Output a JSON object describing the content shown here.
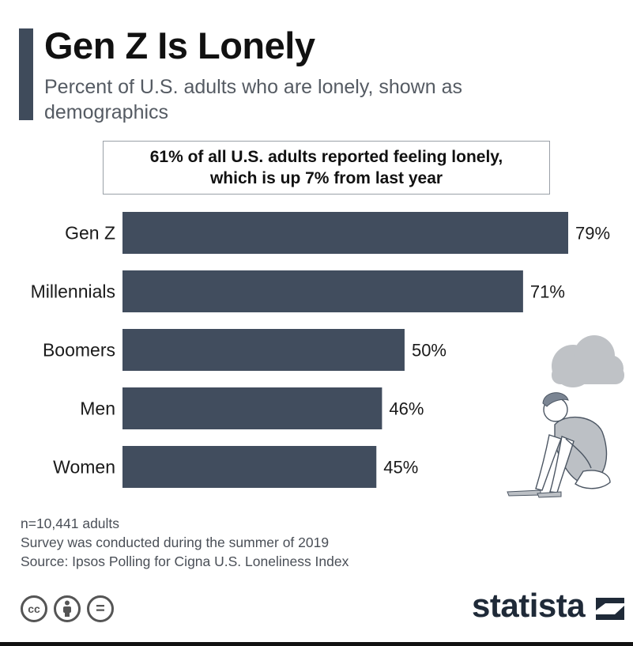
{
  "header": {
    "title": "Gen Z Is Lonely",
    "subtitle": "Percent of U.S. adults who are lonely, shown as demographics"
  },
  "callout": {
    "line1": "61% of all U.S. adults reported feeling lonely,",
    "line2": "which is up 7% from last year"
  },
  "chart_data": {
    "type": "bar",
    "orientation": "horizontal",
    "title": "Gen Z Is Lonely",
    "subtitle": "Percent of U.S. adults who are lonely, shown as demographics",
    "categories": [
      "Gen Z",
      "Millennials",
      "Boomers",
      "Men",
      "Women"
    ],
    "values": [
      79,
      71,
      50,
      46,
      45
    ],
    "value_labels": [
      "79%",
      "71%",
      "50%",
      "46%",
      "45%"
    ],
    "unit": "%",
    "xlim": [
      0,
      100
    ],
    "grid": false,
    "legend": "none",
    "bar_color": "#414d5e"
  },
  "notes": {
    "line1": "n=10,441 adults",
    "line2": "Survey was conducted during the summer of 2019",
    "line3": "Source: Ipsos Polling for Cigna U.S. Loneliness Index"
  },
  "footer": {
    "brand": "statista",
    "icons": [
      "cc-icon",
      "by-person-icon",
      "nd-equals-icon"
    ],
    "cc_text": "cc",
    "nd_text": "="
  }
}
